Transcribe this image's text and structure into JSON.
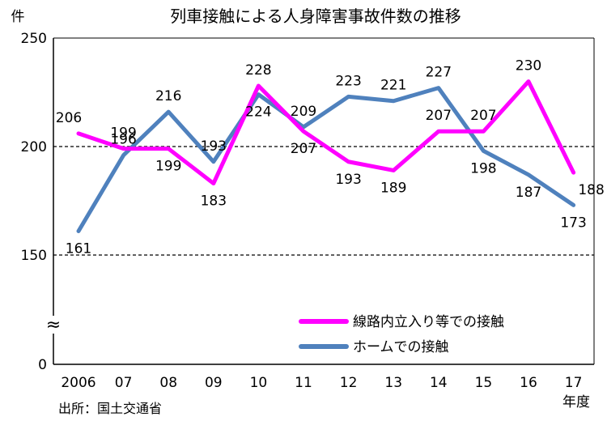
{
  "chart_data": {
    "type": "line",
    "title": "列車接触による人身障害事故件数の推移",
    "ylabel": "件",
    "xlabel": "年度",
    "source": "出所：国土交通省",
    "axis_break_symbol": "≈",
    "yticks": [
      "250",
      "200",
      "150",
      "0"
    ],
    "ylim_upper": [
      150,
      250
    ],
    "gridlines": [
      200,
      150
    ],
    "categories": [
      "2006",
      "07",
      "08",
      "09",
      "10",
      "11",
      "12",
      "13",
      "14",
      "15",
      "16",
      "17"
    ],
    "series": [
      {
        "name": "線路内立入り等での接触",
        "color": "#ff00ff",
        "values": [
          206,
          199,
          199,
          183,
          228,
          207,
          193,
          189,
          207,
          207,
          230,
          188
        ]
      },
      {
        "name": "ホームでの接触",
        "color": "#4f81bd",
        "values": [
          161,
          196,
          216,
          193,
          224,
          209,
          223,
          221,
          227,
          198,
          187,
          173
        ]
      }
    ]
  }
}
